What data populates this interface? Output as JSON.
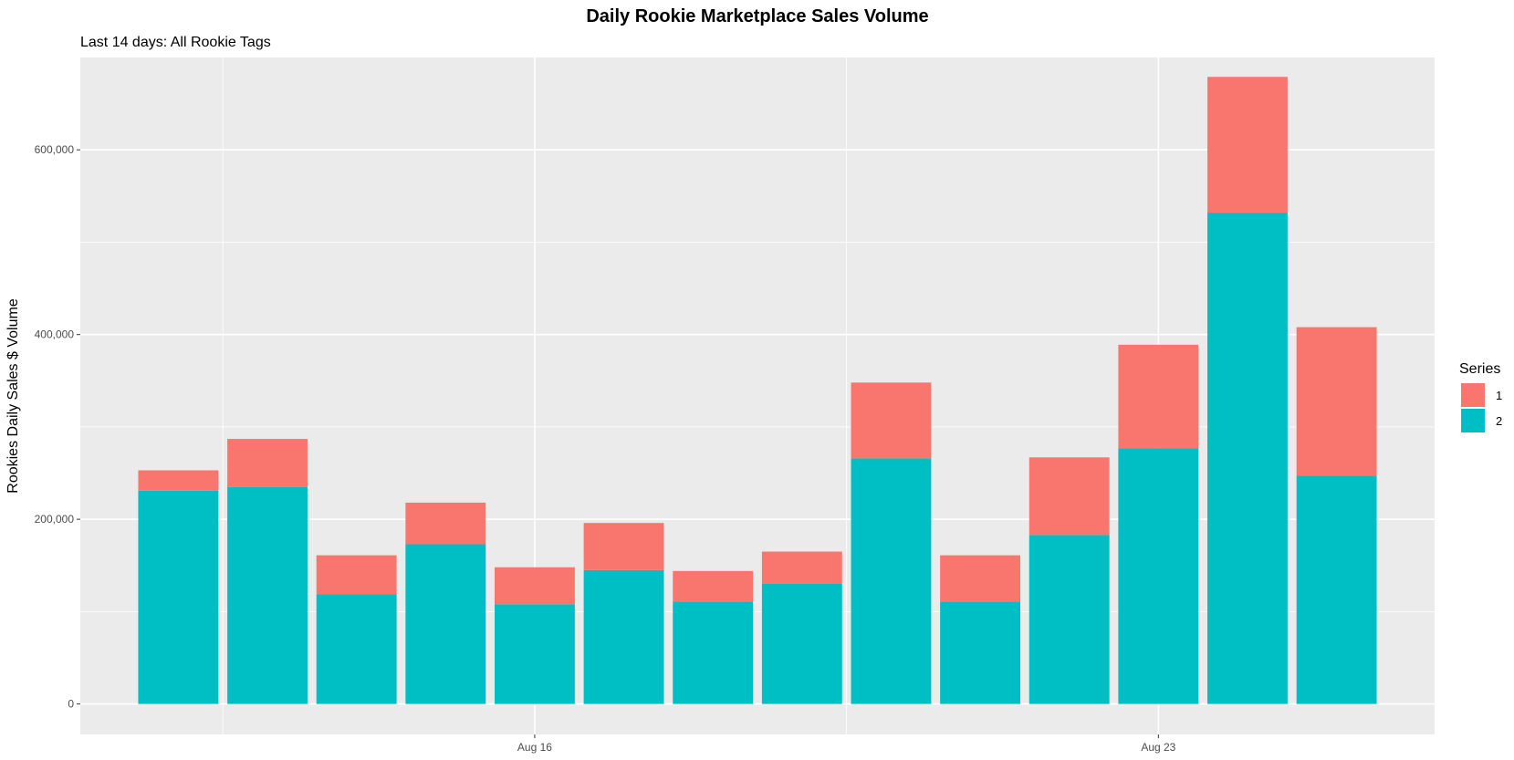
{
  "chart_data": {
    "type": "bar",
    "stacked": true,
    "title": "Daily Rookie Marketplace Sales Volume",
    "subtitle": "Last 14 days: All Rookie Tags",
    "xlabel": "",
    "ylabel": "Rookies Daily Sales $ Volume",
    "x": [
      "2023-08-12",
      "2023-08-13",
      "2023-08-14",
      "2023-08-15",
      "2023-08-16",
      "2023-08-17",
      "2023-08-18",
      "2023-08-19",
      "2023-08-20",
      "2023-08-21",
      "2023-08-22",
      "2023-08-23",
      "2023-08-24",
      "2023-08-25"
    ],
    "x_ticks": [
      {
        "label": "Aug 16",
        "x": "2023-08-16"
      },
      {
        "label": "Aug 23",
        "x": "2023-08-23"
      }
    ],
    "y_ticks": [
      {
        "label": "0",
        "value": 0
      },
      {
        "label": "200,000",
        "value": 200000
      },
      {
        "label": "400,000",
        "value": 400000
      },
      {
        "label": "600,000",
        "value": 600000
      }
    ],
    "ylim": [
      -33000,
      700000
    ],
    "series": [
      {
        "name": "2",
        "color": "#00BFC4",
        "values": [
          231000,
          235000,
          119000,
          173000,
          108000,
          145000,
          111000,
          130000,
          266000,
          111000,
          183000,
          277000,
          532000,
          247000
        ]
      },
      {
        "name": "1",
        "color": "#F8766D",
        "values": [
          22000,
          52000,
          42000,
          45000,
          40000,
          51000,
          33000,
          35000,
          82000,
          50000,
          84000,
          112000,
          147000,
          161000
        ]
      }
    ],
    "legend": {
      "title": "Series",
      "position": "right",
      "entries": [
        {
          "label": "1",
          "color": "#F8766D"
        },
        {
          "label": "2",
          "color": "#00BFC4"
        }
      ]
    },
    "grid": true,
    "panel_background": "#EBEBEB"
  }
}
